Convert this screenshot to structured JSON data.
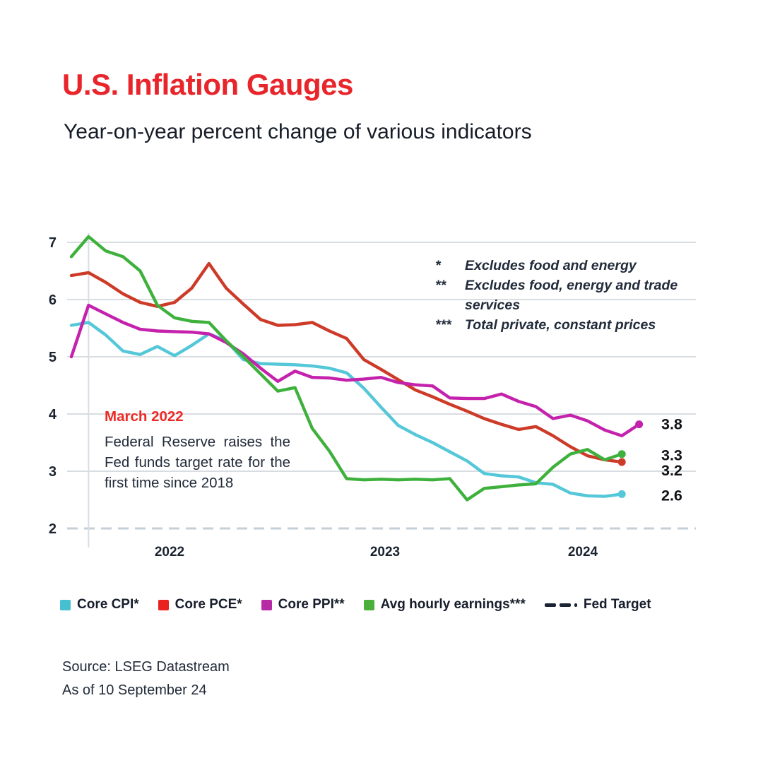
{
  "header": {
    "title": "U.S. Inflation Gauges",
    "subtitle": "Year-on-year percent change of various indicators",
    "title_color": "#e8252a"
  },
  "notes": [
    {
      "marker": "*",
      "text": "Excludes food and energy"
    },
    {
      "marker": "**",
      "text": "Excludes food, energy and trade services"
    },
    {
      "marker": "***",
      "text": "Total private, constant prices"
    }
  ],
  "annotation": {
    "heading": "March 2022",
    "heading_color": "#ed2b26",
    "body": "Federal Reserve raises the Fed funds target rate for the first time since 2018"
  },
  "legend": [
    {
      "label": "Core CPI*",
      "icon": "square",
      "color": "#46bfd1"
    },
    {
      "label": "Core PCE*",
      "icon": "square",
      "color": "#ea211e"
    },
    {
      "label": "Core PPI**",
      "icon": "square",
      "color": "#b62aa5"
    },
    {
      "label": "Avg hourly earnings***",
      "icon": "square",
      "color": "#4cae3b"
    },
    {
      "label": "Fed Target",
      "icon": "dash",
      "color": "#1b2433"
    }
  ],
  "source": {
    "line1": "Source: LSEG Datastream",
    "line2": "As of 10 September 24"
  },
  "chart_data": {
    "type": "line",
    "title": "U.S. Inflation Gauges",
    "subtitle": "Year-on-year percent change of various indicators",
    "ylabel": "",
    "xlabel": "",
    "ylim": [
      2,
      7.3
    ],
    "yticks": [
      2,
      3,
      4,
      5,
      6,
      7
    ],
    "grid": "horizontal solid, dashed gridline at 2 (Fed target), one vertical line at Jan-2022",
    "legend_position": "bottom",
    "x_axis_labels": [
      "2022",
      "2023",
      "2024"
    ],
    "months": [
      "Dec-2021",
      "Jan-2022",
      "Feb-2022",
      "Mar-2022",
      "Apr-2022",
      "May-2022",
      "Jun-2022",
      "Jul-2022",
      "Aug-2022",
      "Sep-2022",
      "Oct-2022",
      "Nov-2022",
      "Dec-2022",
      "Jan-2023",
      "Feb-2023",
      "Mar-2023",
      "Apr-2023",
      "May-2023",
      "Jun-2023",
      "Jul-2023",
      "Aug-2023",
      "Sep-2023",
      "Oct-2023",
      "Nov-2023",
      "Dec-2023",
      "Jan-2024",
      "Feb-2024",
      "Mar-2024",
      "Apr-2024",
      "May-2024",
      "Jun-2024",
      "Jul-2024",
      "Aug-2024",
      "Sep-2024"
    ],
    "fed_target": {
      "label": "Fed Target",
      "value": 2.0,
      "style": "dashed",
      "color": "#c5cfd8"
    },
    "series": [
      {
        "name": "Core CPI*",
        "color": "#54c7d8",
        "end_label": "2.6",
        "values": [
          5.55,
          5.6,
          5.38,
          5.1,
          5.04,
          5.18,
          5.02,
          5.2,
          5.4,
          5.28,
          4.95,
          4.88,
          4.87,
          4.86,
          4.84,
          4.8,
          4.72,
          4.45,
          4.12,
          3.8,
          3.64,
          3.5,
          3.34,
          3.18,
          2.96,
          2.92,
          2.9,
          2.8,
          2.77,
          2.62,
          2.57,
          2.56,
          2.6
        ]
      },
      {
        "name": "Core PCE*",
        "color": "#cd3a27",
        "end_label": "3.2",
        "values": [
          6.42,
          6.47,
          6.3,
          6.1,
          5.95,
          5.88,
          5.95,
          6.2,
          6.63,
          6.2,
          5.92,
          5.65,
          5.55,
          5.56,
          5.6,
          5.45,
          5.32,
          4.95,
          4.78,
          4.6,
          4.42,
          4.3,
          4.17,
          4.05,
          3.92,
          3.82,
          3.73,
          3.78,
          3.62,
          3.43,
          3.27,
          3.2,
          3.16
        ]
      },
      {
        "name": "Core PPI**",
        "color": "#c421ad",
        "end_label": "3.8",
        "values": [
          5.0,
          5.9,
          5.75,
          5.6,
          5.48,
          5.45,
          5.44,
          5.43,
          5.4,
          5.25,
          5.05,
          4.8,
          4.57,
          4.75,
          4.64,
          4.63,
          4.59,
          4.61,
          4.64,
          4.55,
          4.51,
          4.49,
          4.28,
          4.27,
          4.27,
          4.35,
          4.22,
          4.13,
          3.92,
          3.98,
          3.88,
          3.72,
          3.62,
          3.82
        ]
      },
      {
        "name": "Avg hourly earnings***",
        "color": "#3eb13c",
        "end_label": "3.3",
        "values": [
          6.75,
          7.1,
          6.85,
          6.75,
          6.5,
          5.9,
          5.68,
          5.62,
          5.6,
          5.28,
          5.0,
          4.7,
          4.4,
          4.46,
          3.75,
          3.35,
          2.87,
          2.85,
          2.86,
          2.85,
          2.86,
          2.85,
          2.87,
          2.5,
          2.7,
          2.73,
          2.76,
          2.78,
          3.07,
          3.3,
          3.38,
          3.2,
          3.3
        ]
      }
    ]
  }
}
